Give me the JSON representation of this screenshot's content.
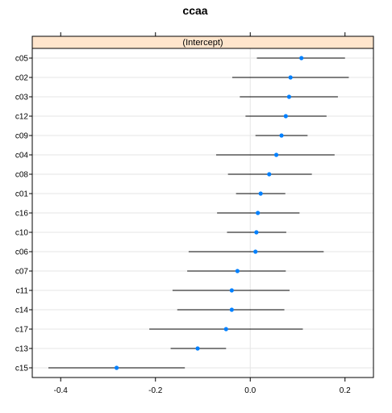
{
  "chart_data": {
    "type": "scatter",
    "title": "ccaa",
    "strip_label": "(Intercept)",
    "xlim": [
      -0.46,
      0.26
    ],
    "x_ticks": [
      -0.4,
      -0.2,
      0.0,
      0.2
    ],
    "x_tick_labels": [
      "-0.4",
      "-0.2",
      "0.0",
      "0.2"
    ],
    "reference_line_x": 0.0,
    "grid": true,
    "categories": [
      "c05",
      "c02",
      "c03",
      "c12",
      "c09",
      "c04",
      "c08",
      "c01",
      "c16",
      "c10",
      "c06",
      "c07",
      "c11",
      "c14",
      "c17",
      "c13",
      "c15"
    ],
    "estimate": [
      0.108,
      0.085,
      0.082,
      0.075,
      0.066,
      0.055,
      0.04,
      0.022,
      0.016,
      0.013,
      0.011,
      -0.027,
      -0.039,
      -0.039,
      -0.051,
      -0.111,
      -0.282
    ],
    "lower": [
      0.014,
      -0.038,
      -0.022,
      -0.01,
      0.011,
      -0.072,
      -0.047,
      -0.03,
      -0.07,
      -0.049,
      -0.13,
      -0.133,
      -0.164,
      -0.154,
      -0.213,
      -0.168,
      -0.426
    ],
    "upper": [
      0.2,
      0.208,
      0.185,
      0.161,
      0.121,
      0.178,
      0.13,
      0.074,
      0.104,
      0.076,
      0.155,
      0.075,
      0.083,
      0.072,
      0.111,
      -0.051,
      -0.138
    ],
    "colors": {
      "point": "#0080ff",
      "strip": "#ffe5cc",
      "reference": "#e6e6e6",
      "grid": "#e6e6e6",
      "bar": "#000000"
    }
  }
}
